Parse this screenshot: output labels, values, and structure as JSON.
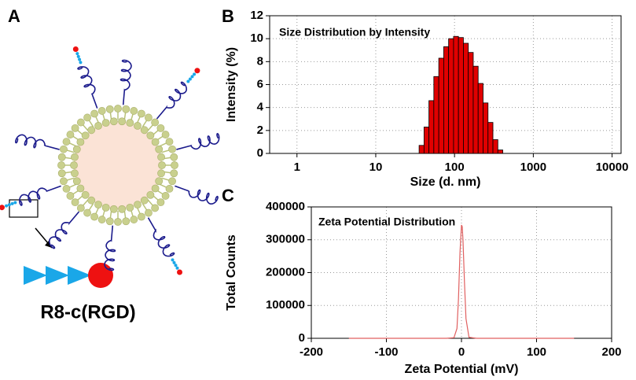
{
  "panel_labels": [
    "A",
    "B",
    "C"
  ],
  "diagram": {
    "label": "R8-c(RGD)"
  },
  "chart_data": [
    {
      "type": "histogram",
      "title": "Size Distribution by Intensity",
      "x_label": "Size (d. nm)",
      "y_label": "Intensity (%)",
      "bins": [
        35.5,
        41.0,
        47.3,
        54.6,
        63.1,
        72.9,
        84.1,
        97.2,
        112.2,
        129.6,
        149.6,
        172.8,
        199.5,
        230.4,
        266.1,
        307.3,
        354.8,
        409.7
      ],
      "values": [
        0.7,
        2.3,
        4.6,
        6.7,
        8.3,
        9.3,
        10.0,
        10.2,
        10.1,
        9.6,
        8.8,
        7.6,
        6.1,
        4.4,
        2.7,
        1.2,
        0.3
      ],
      "color": "#e00000",
      "xscale": "log",
      "xlim": [
        0.45,
        13000
      ],
      "xticks": [
        1,
        10,
        100,
        1000,
        10000
      ],
      "ylim": [
        0,
        12
      ],
      "yticks": [
        0,
        2,
        4,
        6,
        8,
        10,
        12
      ],
      "grid": true
    },
    {
      "type": "line",
      "title": "Zeta Potential Distribution",
      "x_label": "Zeta Potential (mV)",
      "y_label": "Total Counts",
      "x": [
        -150,
        -20,
        -10,
        -6,
        -4,
        -2,
        0,
        1,
        2,
        4,
        6,
        10,
        20,
        150
      ],
      "values": [
        0,
        0,
        2000,
        30000,
        120000,
        260000,
        345000,
        340000,
        300000,
        170000,
        60000,
        3000,
        0,
        0
      ],
      "color": "#e06060",
      "xlim": [
        -200,
        200
      ],
      "xticks": [
        -200,
        -100,
        0,
        100,
        200
      ],
      "ylim": [
        0,
        400000
      ],
      "yticks": [
        0,
        100000,
        200000,
        300000,
        400000
      ],
      "grid": true
    }
  ]
}
